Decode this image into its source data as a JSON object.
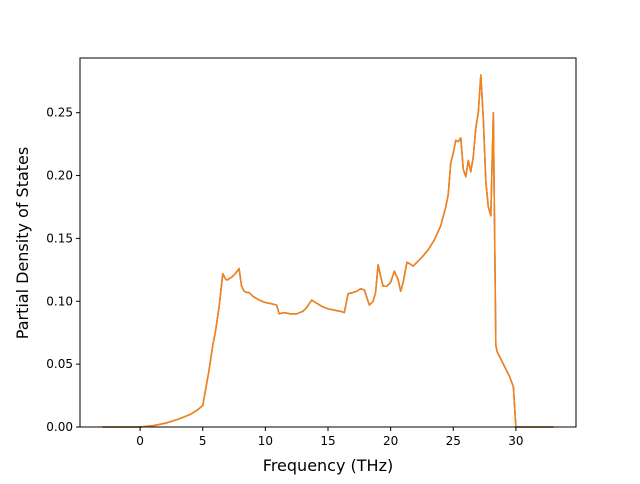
{
  "chart_data": {
    "type": "line",
    "xlabel": "Frequency (THz)",
    "ylabel": "Partial Density of States",
    "xlim": [
      -4.8,
      34.8
    ],
    "ylim": [
      0.0,
      0.2935
    ],
    "xticks": [
      0,
      5,
      10,
      15,
      20,
      25,
      30
    ],
    "yticks": [
      0.0,
      0.05,
      0.1,
      0.15,
      0.2,
      0.25
    ],
    "ytick_labels": [
      "0.00",
      "0.05",
      "0.10",
      "0.15",
      "0.20",
      "0.25"
    ],
    "grid": false,
    "colors": {
      "series_under": "#1f77b4",
      "series_over": "#ff7f0e",
      "frame": "#000000"
    },
    "series": [
      {
        "x": [
          -3.0,
          0.0,
          1.0,
          2.0,
          3.0,
          4.0,
          4.5,
          5.0,
          5.5,
          5.8,
          6.0,
          6.3,
          6.6,
          6.8,
          6.9,
          7.0,
          7.1,
          7.3,
          7.6,
          7.9,
          8.1,
          8.3,
          8.5,
          8.7,
          9.0,
          9.5,
          10.0,
          10.5,
          10.9,
          11.1,
          11.5,
          12.0,
          12.5,
          13.0,
          13.3,
          13.7,
          14.0,
          14.5,
          15.0,
          15.5,
          16.0,
          16.3,
          16.6,
          17.0,
          17.3,
          17.6,
          17.9,
          18.1,
          18.3,
          18.6,
          18.8,
          19.0,
          19.2,
          19.4,
          19.7,
          20.0,
          20.3,
          20.6,
          20.8,
          21.0,
          21.3,
          21.5,
          21.8,
          22.0,
          22.5,
          23.0,
          23.5,
          24.0,
          24.4,
          24.6,
          24.8,
          25.0,
          25.2,
          25.4,
          25.6,
          25.8,
          26.0,
          26.2,
          26.4,
          26.6,
          26.8,
          27.0,
          27.2,
          27.4,
          27.6,
          27.8,
          28.0,
          28.2,
          28.4,
          28.5,
          29.0,
          29.5,
          29.8,
          30.0,
          31.0,
          33.0
        ],
        "y": [
          0.0,
          0.0,
          0.001,
          0.003,
          0.006,
          0.01,
          0.013,
          0.017,
          0.045,
          0.065,
          0.075,
          0.095,
          0.122,
          0.118,
          0.117,
          0.117,
          0.118,
          0.119,
          0.122,
          0.126,
          0.112,
          0.108,
          0.107,
          0.107,
          0.104,
          0.101,
          0.099,
          0.098,
          0.097,
          0.09,
          0.091,
          0.09,
          0.09,
          0.092,
          0.095,
          0.101,
          0.099,
          0.096,
          0.094,
          0.093,
          0.092,
          0.091,
          0.106,
          0.107,
          0.108,
          0.11,
          0.109,
          0.103,
          0.097,
          0.1,
          0.107,
          0.129,
          0.12,
          0.112,
          0.112,
          0.115,
          0.124,
          0.117,
          0.108,
          0.115,
          0.131,
          0.13,
          0.128,
          0.13,
          0.135,
          0.141,
          0.149,
          0.16,
          0.175,
          0.185,
          0.21,
          0.218,
          0.228,
          0.227,
          0.23,
          0.205,
          0.199,
          0.212,
          0.203,
          0.215,
          0.238,
          0.25,
          0.28,
          0.245,
          0.195,
          0.175,
          0.168,
          0.25,
          0.065,
          0.06,
          0.05,
          0.04,
          0.032,
          0.0,
          0.0,
          0.0
        ]
      }
    ]
  }
}
